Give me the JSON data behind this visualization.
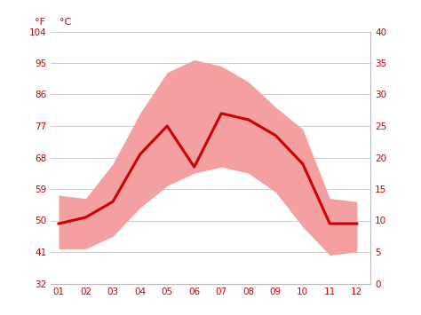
{
  "months": [
    1,
    2,
    3,
    4,
    5,
    6,
    7,
    8,
    9,
    10,
    11,
    12
  ],
  "month_labels": [
    "01",
    "02",
    "03",
    "04",
    "05",
    "06",
    "07",
    "08",
    "09",
    "10",
    "11",
    "12"
  ],
  "mean_c": [
    9.5,
    10.5,
    13.0,
    20.5,
    25.0,
    18.5,
    27.0,
    26.0,
    23.5,
    19.0,
    9.5,
    9.5
  ],
  "max_c": [
    14.0,
    13.5,
    19.0,
    27.0,
    33.5,
    35.5,
    34.5,
    32.0,
    28.0,
    24.5,
    13.5,
    13.0
  ],
  "min_c": [
    5.5,
    5.5,
    7.5,
    12.0,
    15.5,
    17.5,
    18.5,
    17.5,
    14.5,
    9.0,
    4.5,
    5.0
  ],
  "line_color": "#cc0000",
  "band_color": "#f4a0a0",
  "background_color": "#ffffff",
  "grid_color": "#cccccc",
  "left_ticks_f": [
    "104",
    "95",
    "86",
    "77",
    "68",
    "59",
    "50",
    "41",
    "32"
  ],
  "right_ticks_c": [
    "40",
    "35",
    "30",
    "25",
    "20",
    "15",
    "10",
    "5",
    "0"
  ],
  "right_ticks_c_vals": [
    40,
    35,
    30,
    25,
    20,
    15,
    10,
    5,
    0
  ],
  "ylim_c": [
    0,
    40
  ],
  "tick_color": "#cc0000",
  "label_f": "°F",
  "label_c": "°C",
  "spine_color": "#bbbbbb"
}
